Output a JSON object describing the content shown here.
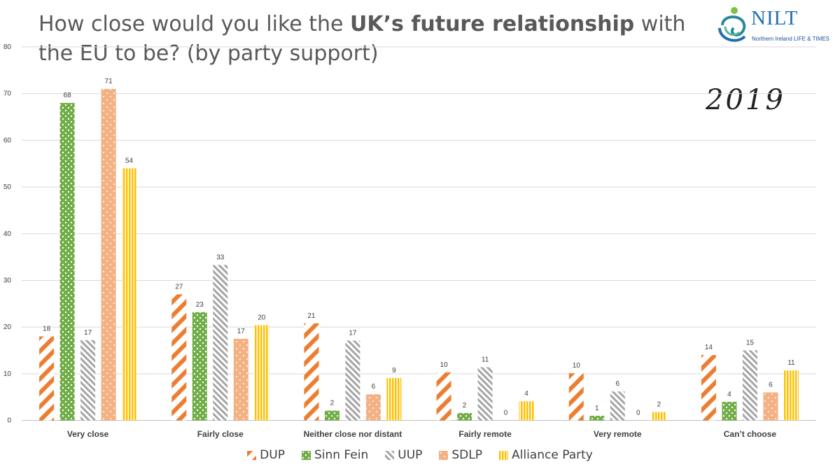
{
  "title": {
    "part1": "How close would you like the ",
    "bold": "UK’s future relationship",
    "part2": " with the EU to be? (by party support)"
  },
  "logo": {
    "name": "NILT",
    "subtitle": "Northern Ireland LIFE & TIMES"
  },
  "annotation": "2019",
  "chart_data": {
    "type": "bar",
    "categories": [
      "Very close",
      "Fairly close",
      "Neither close nor distant",
      "Fairly remote",
      "Very remote",
      "Can’t choose"
    ],
    "series": [
      {
        "name": "DUP",
        "values": [
          18,
          27,
          21,
          10,
          10,
          14
        ],
        "color": "#ED7D31",
        "pattern": "diagonal-stripes"
      },
      {
        "name": "Sinn Fein",
        "values": [
          68,
          23,
          2,
          2,
          1,
          4
        ],
        "color": "#70AD47",
        "pattern": "checker"
      },
      {
        "name": "UUP",
        "values": [
          17,
          33,
          17,
          11,
          6,
          15
        ],
        "color": "#A5A5A5",
        "pattern": "diagonal-hatch"
      },
      {
        "name": "SDLP",
        "values": [
          71,
          17,
          6,
          0,
          0,
          6
        ],
        "color": "#F4B183",
        "pattern": "dots"
      },
      {
        "name": "Alliance Party",
        "values": [
          54,
          20,
          9,
          4,
          2,
          11
        ],
        "color": "#FFC000",
        "pattern": "vertical-lines"
      }
    ],
    "plot_values": [
      [
        18,
        27,
        20.8,
        10.3,
        10.1,
        14
      ],
      [
        68,
        23.2,
        2.1,
        1.6,
        1,
        4
      ],
      [
        17.2,
        33.3,
        17.1,
        11.4,
        6.2,
        15
      ],
      [
        71,
        17.5,
        5.6,
        0,
        0,
        6
      ],
      [
        54,
        20.4,
        9.1,
        4.1,
        1.8,
        10.7
      ]
    ],
    "ylim": [
      0,
      80
    ],
    "yticks": [
      "0",
      "10",
      "20",
      "30",
      "40",
      "50",
      "60",
      "70",
      "80"
    ],
    "grid": true,
    "legend_position": "bottom"
  }
}
